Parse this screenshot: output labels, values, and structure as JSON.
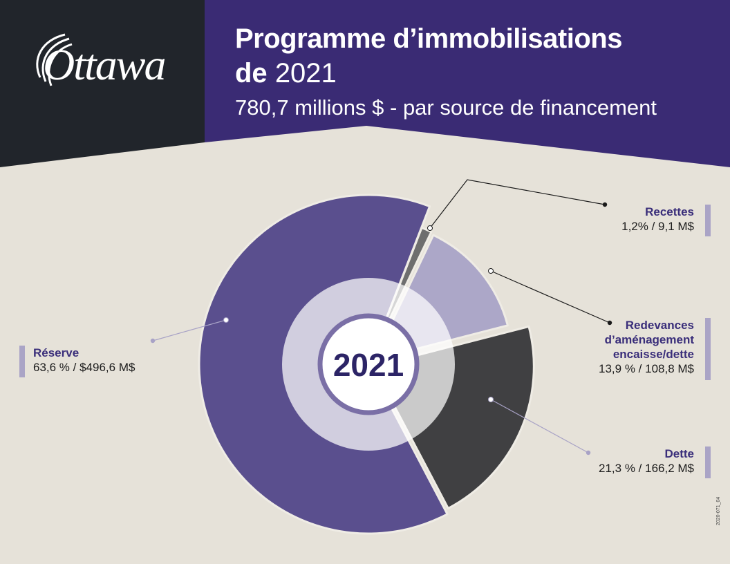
{
  "header": {
    "logo": "Ottawa",
    "title_line1": "Programme d’immobilisations",
    "title_line2_bold": "de",
    "title_line2_year": "2021",
    "subtitle": "780,7 millions $ - par source de financement"
  },
  "colors": {
    "header_dark": "#21252b",
    "header_purple": "#3a2b74",
    "background": "#e6e2d9",
    "reserve": "#5a4f8e",
    "recettes": "#6e6e6e",
    "redevances": "#aca7c8",
    "dette": "#404042",
    "label_purple": "#3a2e7a"
  },
  "chart_data": {
    "type": "pie",
    "title": "780,7 millions $ - par source de financement",
    "center_label": "2021",
    "total": 780.7,
    "slices": [
      {
        "name": "Recettes",
        "percent": 1.2,
        "value": 9.1,
        "label": "1,2% / 9,1 M$",
        "color": "#6e6e6e"
      },
      {
        "name": "Redevances d’aménagement encaisse/dette",
        "percent": 13.9,
        "value": 108.8,
        "label": "13,9 % / 108,8 M$",
        "color": "#aca7c8"
      },
      {
        "name": "Dette",
        "percent": 21.3,
        "value": 166.2,
        "label": "21,3 % / 166,2 M$",
        "color": "#404042"
      },
      {
        "name": "Réserve",
        "percent": 63.6,
        "value": 496.6,
        "label": "63,6 % / $496,6 M$",
        "color": "#5a4f8e"
      }
    ]
  },
  "labels": {
    "recettes": {
      "name": "Recettes",
      "value": "1,2% / 9,1 M$"
    },
    "redevances": {
      "name1": "Redevances",
      "name2": "d’aménagement",
      "name3": "encaisse/dette",
      "value": "13,9 % / 108,8 M$"
    },
    "dette": {
      "name": "Dette",
      "value": "21,3 % / 166,2 M$"
    },
    "reserve": {
      "name": "Réserve",
      "value": "63,6 % / $496,6 M$"
    }
  },
  "doc_code": "2020-071_04"
}
